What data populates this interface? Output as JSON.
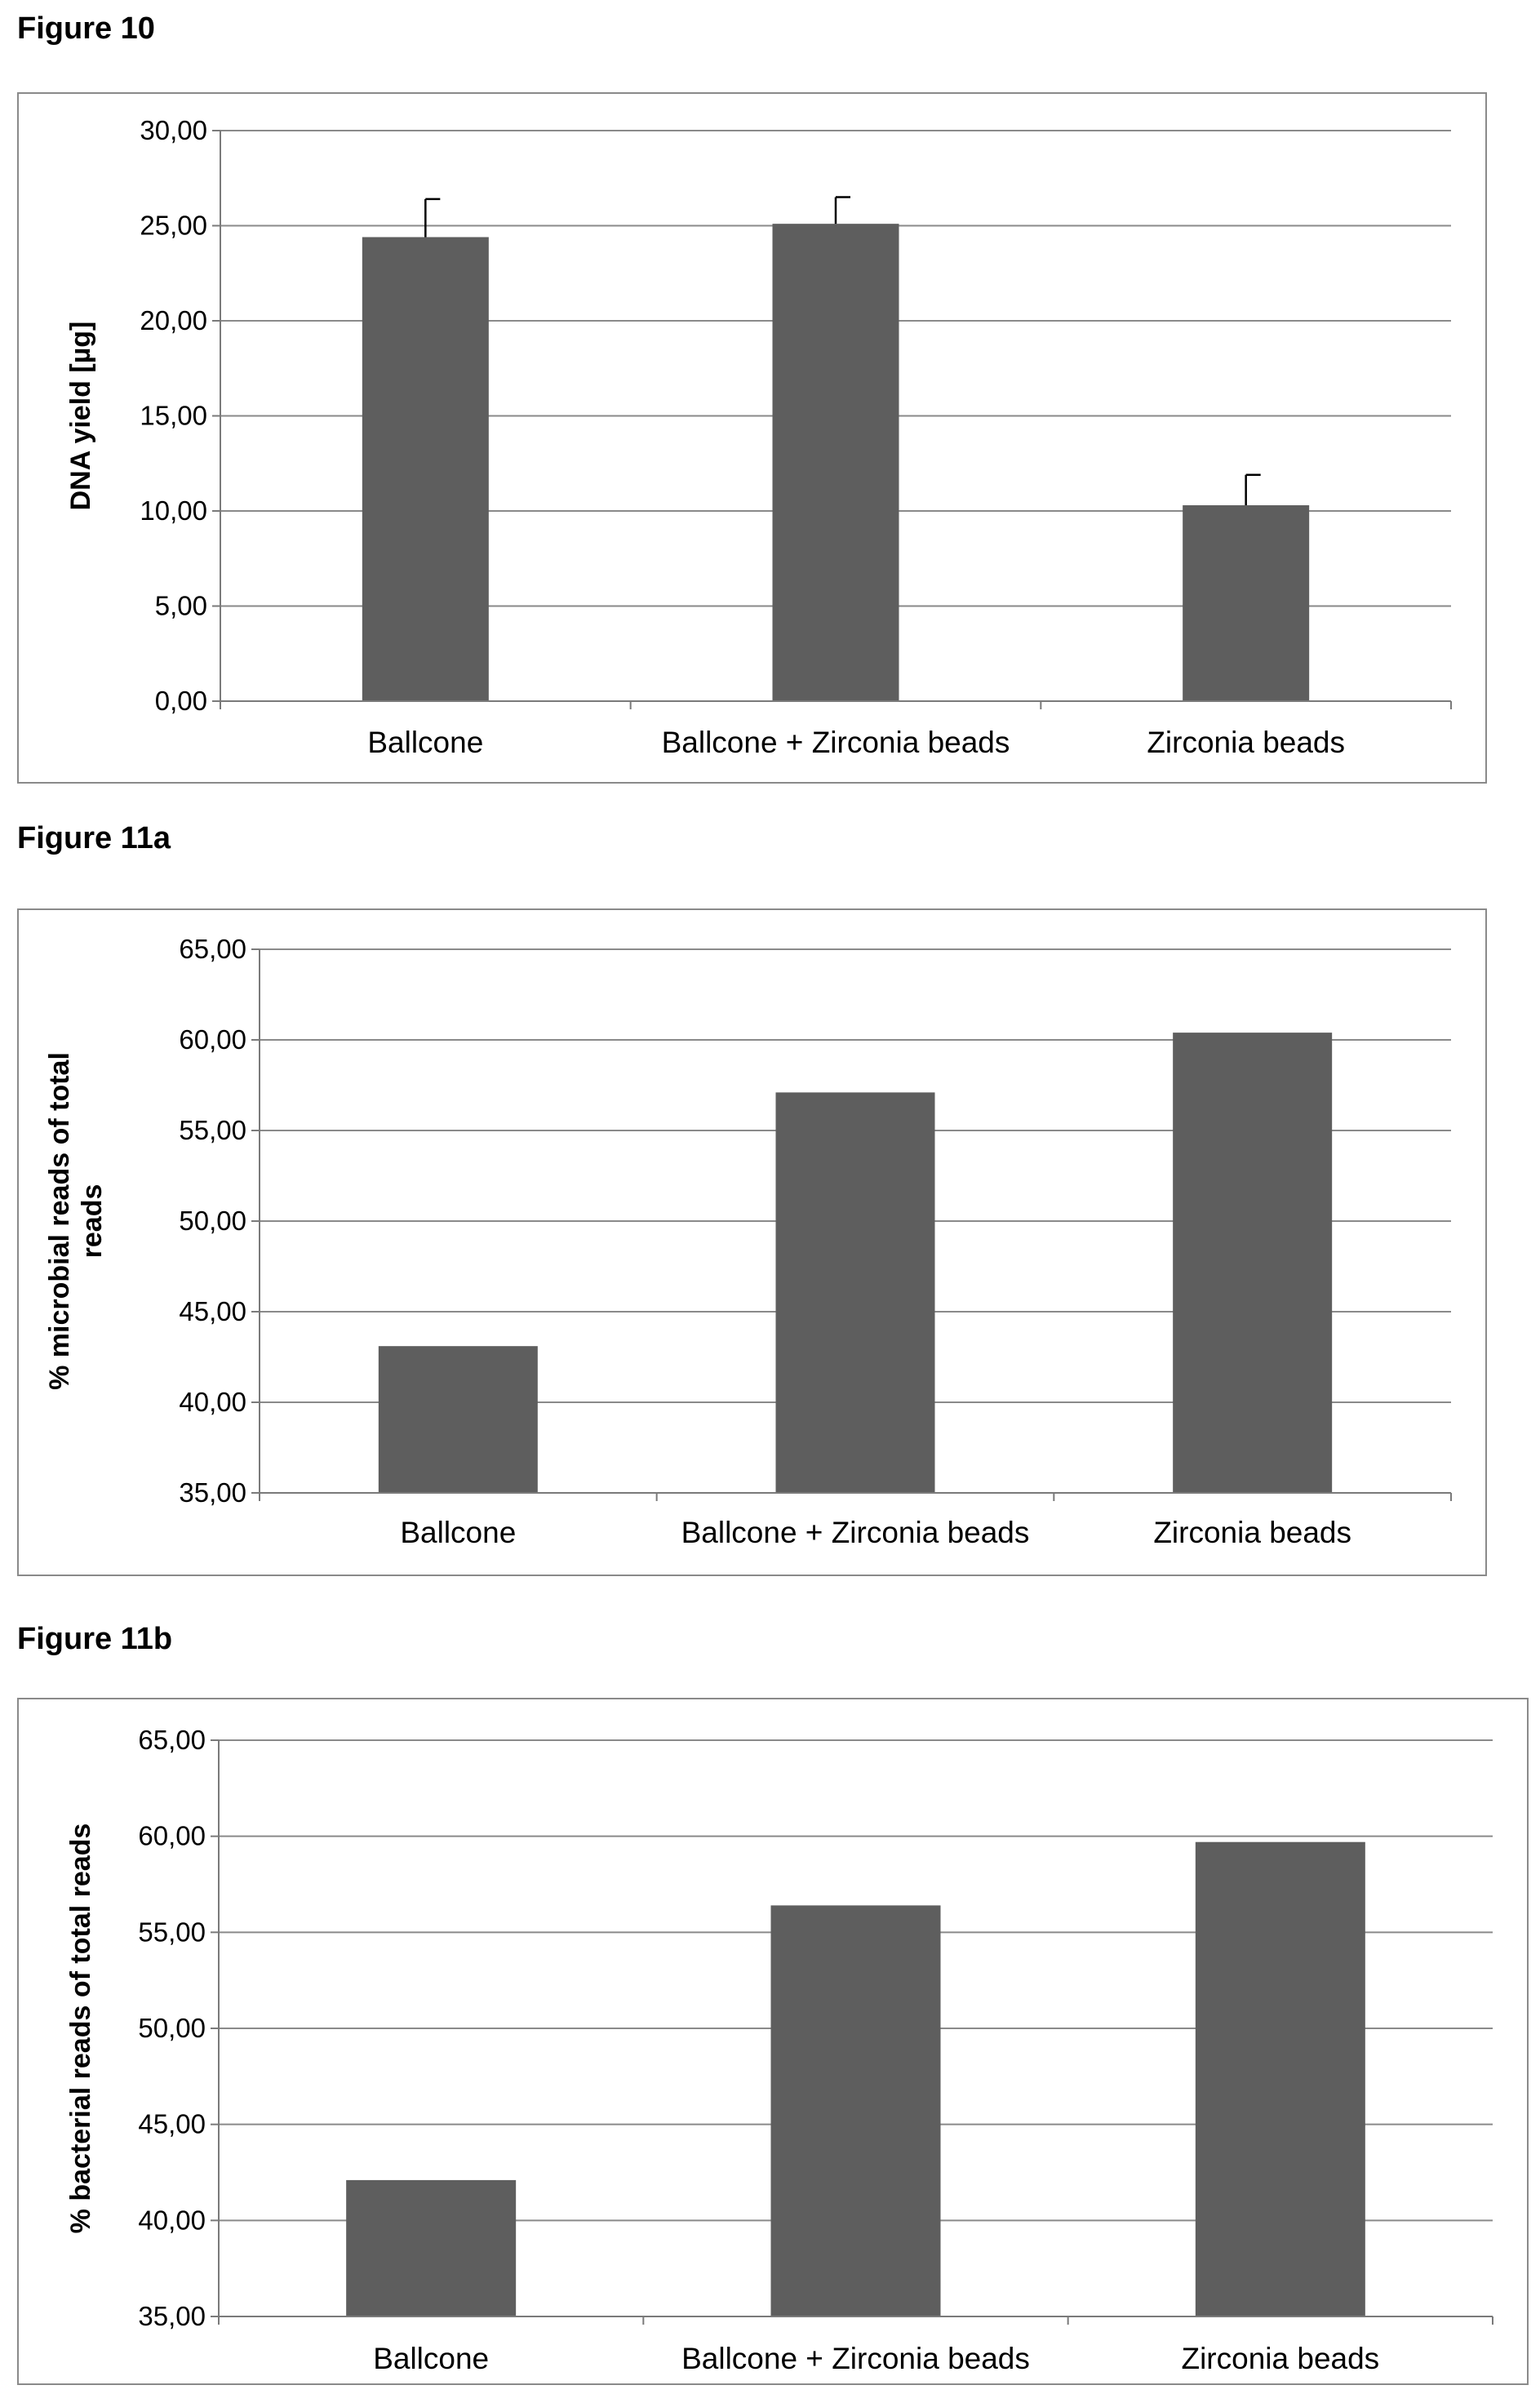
{
  "figures": [
    {
      "label": "Figure 10"
    },
    {
      "label": "Figure 11a"
    },
    {
      "label": "Figure 11b"
    }
  ],
  "colors": {
    "bar": "#5e5e5e",
    "grid": "#8a8a8a",
    "axis": "#7a7a7a",
    "frame": "#8a8a8a"
  },
  "chart_data": [
    {
      "type": "bar",
      "title": "",
      "categories": [
        "Ballcone",
        "Ballcone + Zirconia beads",
        "Zirconia beads"
      ],
      "values": [
        24.4,
        25.1,
        10.3
      ],
      "error_plus": [
        2.0,
        1.4,
        1.6
      ],
      "ylabel": "DNA yield [µg]",
      "xlabel": "",
      "ylim": [
        0,
        30
      ],
      "ytick_step": 5,
      "ytick_labels": [
        "0,00",
        "5,00",
        "10,00",
        "15,00",
        "20,00",
        "25,00",
        "30,00"
      ],
      "grid": true
    },
    {
      "type": "bar",
      "title": "",
      "categories": [
        "Ballcone",
        "Ballcone + Zirconia beads",
        "Zirconia beads"
      ],
      "values": [
        43.1,
        57.1,
        60.4
      ],
      "ylabel": "% microbial reads of total reads",
      "ylabel_lines": [
        "% microbial reads of total",
        "reads"
      ],
      "xlabel": "",
      "ylim": [
        35,
        65
      ],
      "ytick_step": 5,
      "ytick_labels": [
        "35,00",
        "40,00",
        "45,00",
        "50,00",
        "55,00",
        "60,00",
        "65,00"
      ],
      "grid": true
    },
    {
      "type": "bar",
      "title": "",
      "categories": [
        "Ballcone",
        "Ballcone + Zirconia beads",
        "Zirconia beads"
      ],
      "values": [
        42.1,
        56.4,
        59.7
      ],
      "ylabel": "% bacterial reads of total reads",
      "xlabel": "",
      "ylim": [
        35,
        65
      ],
      "ytick_step": 5,
      "ytick_labels": [
        "35,00",
        "40,00",
        "45,00",
        "50,00",
        "55,00",
        "60,00",
        "65,00"
      ],
      "grid": true
    }
  ]
}
